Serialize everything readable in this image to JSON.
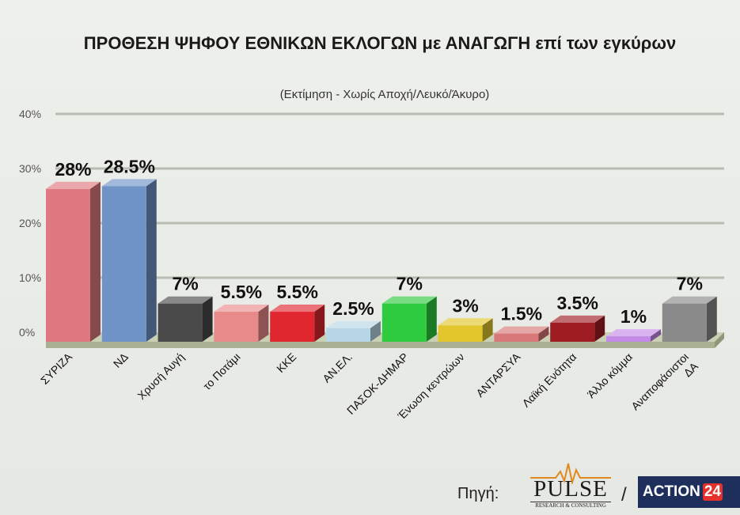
{
  "chart_data": {
    "type": "bar",
    "title": "ΠΡΟΘΕΣΗ ΨΗΦΟΥ ΕΘΝΙΚΩΝ ΕΚΛΟΓΩΝ με ΑΝΑΓΩΓΗ επί των εγκύρων",
    "subtitle": "(Εκτίμηση  -  Χωρίς Αποχή/Λευκό/Άκυρο)",
    "xlabel": "",
    "ylabel": "",
    "ylim": [
      0,
      40
    ],
    "yticks": [
      "0%",
      "10%",
      "20%",
      "30%",
      "40%"
    ],
    "grid": true,
    "categories": [
      "ΣΥΡΙΖΑ",
      "ΝΔ",
      "Χρυσή Αυγή",
      "το Ποτάμι",
      "ΚΚΕ",
      "ΑΝ.ΕΛ.",
      "ΠΑΣΟΚ-ΔΗΜΑΡ",
      "Ένωση κεντρώων",
      "ΑΝΤΑΡΣΥΑ",
      "Λαϊκή Ενότητα",
      "Άλλο κόμμα",
      "Αναποφάσιστοι ΔΑ"
    ],
    "values": [
      28,
      28.5,
      7,
      5.5,
      5.5,
      2.5,
      7,
      3,
      1.5,
      3.5,
      1,
      7
    ],
    "value_labels": [
      "28%",
      "28.5%",
      "7%",
      "5.5%",
      "5.5%",
      "2.5%",
      "7%",
      "3%",
      "1.5%",
      "3.5%",
      "1%",
      "7%"
    ],
    "colors": [
      "#e0797f",
      "#6f93c6",
      "#4a4a4a",
      "#e98a8a",
      "#e0262f",
      "#b8d7e6",
      "#2fcb3e",
      "#e3c62b",
      "#d97878",
      "#9e1d23",
      "#c48ce8",
      "#8a8a8a"
    ]
  },
  "footer": {
    "source_label": "Πηγή:",
    "logo_pulse": "PULSE",
    "logo_pulse_sub": "RESEARCH & CONSULTING",
    "separator": "/",
    "logo_action_text": "ACTION",
    "logo_action_num": "24"
  }
}
